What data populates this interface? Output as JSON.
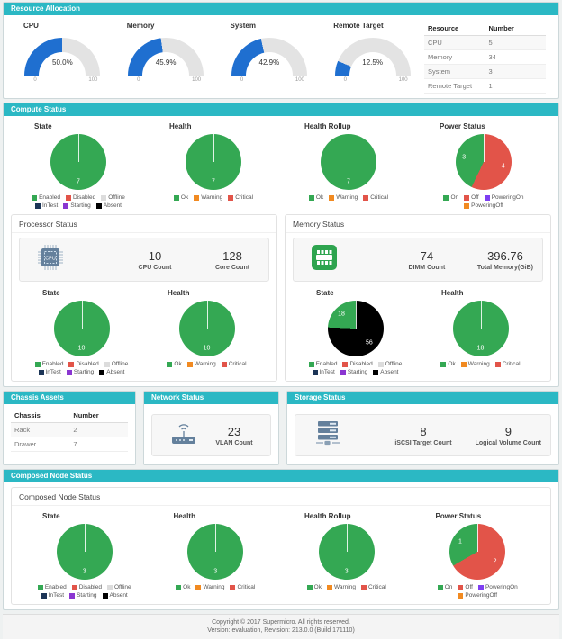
{
  "colors": {
    "gauge_blue": "#1f6fd0",
    "panel_header": "#2bb8c4",
    "green": "#34a853",
    "red": "#e25449"
  },
  "legends": {
    "state": [
      {
        "label": "Enabled",
        "color": "#34a853"
      },
      {
        "label": "Disabled",
        "color": "#e25449"
      },
      {
        "label": "Offline",
        "color": "#dcdcdc"
      },
      {
        "label": "InTest",
        "color": "#1c3557"
      },
      {
        "label": "Starting",
        "color": "#8a36d1"
      },
      {
        "label": "Absent",
        "color": "#000000"
      }
    ],
    "health": [
      {
        "label": "Ok",
        "color": "#34a853"
      },
      {
        "label": "Warning",
        "color": "#f18a21"
      },
      {
        "label": "Critical",
        "color": "#e25449"
      }
    ],
    "power": [
      {
        "label": "On",
        "color": "#34a853"
      },
      {
        "label": "Off",
        "color": "#e25449"
      },
      {
        "label": "PoweringOn",
        "color": "#7e3ff2"
      },
      {
        "label": "PoweringOff",
        "color": "#f18a21"
      }
    ]
  },
  "resource_allocation": {
    "title": "Resource Allocation",
    "gauges": [
      {
        "label": "CPU",
        "value": 50.0,
        "display": "50.0%",
        "min": "0",
        "max": "100"
      },
      {
        "label": "Memory",
        "value": 45.9,
        "display": "45.9%",
        "min": "0",
        "max": "100"
      },
      {
        "label": "System",
        "value": 42.9,
        "display": "42.9%",
        "min": "0",
        "max": "100"
      },
      {
        "label": "Remote Target",
        "value": 12.5,
        "display": "12.5%",
        "min": "0",
        "max": "100"
      }
    ],
    "table": {
      "headers": [
        "Resource",
        "Number"
      ],
      "rows": [
        [
          "CPU",
          "5"
        ],
        [
          "Memory",
          "34"
        ],
        [
          "System",
          "3"
        ],
        [
          "Remote Target",
          "1"
        ]
      ]
    }
  },
  "compute": {
    "title": "Compute Status",
    "pies": [
      {
        "title": "State",
        "legend": "state",
        "slices": [
          {
            "value": 7,
            "color": "#34a853"
          }
        ]
      },
      {
        "title": "Health",
        "legend": "health",
        "slices": [
          {
            "value": 7,
            "color": "#34a853"
          }
        ]
      },
      {
        "title": "Health Rollup",
        "legend": "health",
        "slices": [
          {
            "value": 7,
            "color": "#34a853"
          }
        ]
      },
      {
        "title": "Power Status",
        "legend": "power",
        "slices": [
          {
            "value": 3,
            "color": "#34a853"
          },
          {
            "value": 4,
            "color": "#e25449"
          }
        ]
      }
    ],
    "processor": {
      "title": "Processor Status",
      "stats": [
        {
          "value": "10",
          "label": "CPU Count"
        },
        {
          "value": "128",
          "label": "Core Count"
        }
      ],
      "pies": [
        {
          "title": "State",
          "legend": "state",
          "slices": [
            {
              "value": 10,
              "color": "#34a853"
            }
          ]
        },
        {
          "title": "Health",
          "legend": "health",
          "slices": [
            {
              "value": 10,
              "color": "#34a853"
            }
          ]
        }
      ]
    },
    "memory": {
      "title": "Memory Status",
      "stats": [
        {
          "value": "74",
          "label": "DIMM Count"
        },
        {
          "value": "396.76",
          "label": "Total Memory(GiB)"
        }
      ],
      "pies": [
        {
          "title": "State",
          "legend": "state",
          "slices": [
            {
              "value": 18,
              "color": "#34a853"
            },
            {
              "value": 56,
              "color": "#000000"
            }
          ]
        },
        {
          "title": "Health",
          "legend": "health",
          "slices": [
            {
              "value": 18,
              "color": "#34a853"
            }
          ]
        }
      ]
    }
  },
  "chassis": {
    "title": "Chassis Assets",
    "table": {
      "headers": [
        "Chassis",
        "Number"
      ],
      "rows": [
        [
          "Rack",
          "2"
        ],
        [
          "Drawer",
          "7"
        ]
      ]
    }
  },
  "network": {
    "title": "Network Status",
    "stats": [
      {
        "value": "23",
        "label": "VLAN Count"
      }
    ]
  },
  "storage": {
    "title": "Storage Status",
    "stats": [
      {
        "value": "8",
        "label": "iSCSI Target Count"
      },
      {
        "value": "9",
        "label": "Logical Volume Count"
      }
    ]
  },
  "composed": {
    "title": "Composed Node Status",
    "inner_title": "Composed Node Status",
    "pies": [
      {
        "title": "State",
        "legend": "state",
        "slices": [
          {
            "value": 3,
            "color": "#34a853"
          }
        ]
      },
      {
        "title": "Health",
        "legend": "health",
        "slices": [
          {
            "value": 3,
            "color": "#34a853"
          }
        ]
      },
      {
        "title": "Health Rollup",
        "legend": "health",
        "slices": [
          {
            "value": 3,
            "color": "#34a853"
          }
        ]
      },
      {
        "title": "Power Status",
        "legend": "power",
        "slices": [
          {
            "value": 1,
            "color": "#34a853"
          },
          {
            "value": 2,
            "color": "#e25449"
          }
        ]
      }
    ]
  },
  "footer": {
    "line1": "Copyright © 2017 Supermicro. All rights reserved.",
    "line2": "Version: evaluation, Revision: 213.0.0 (Build 171110)"
  }
}
